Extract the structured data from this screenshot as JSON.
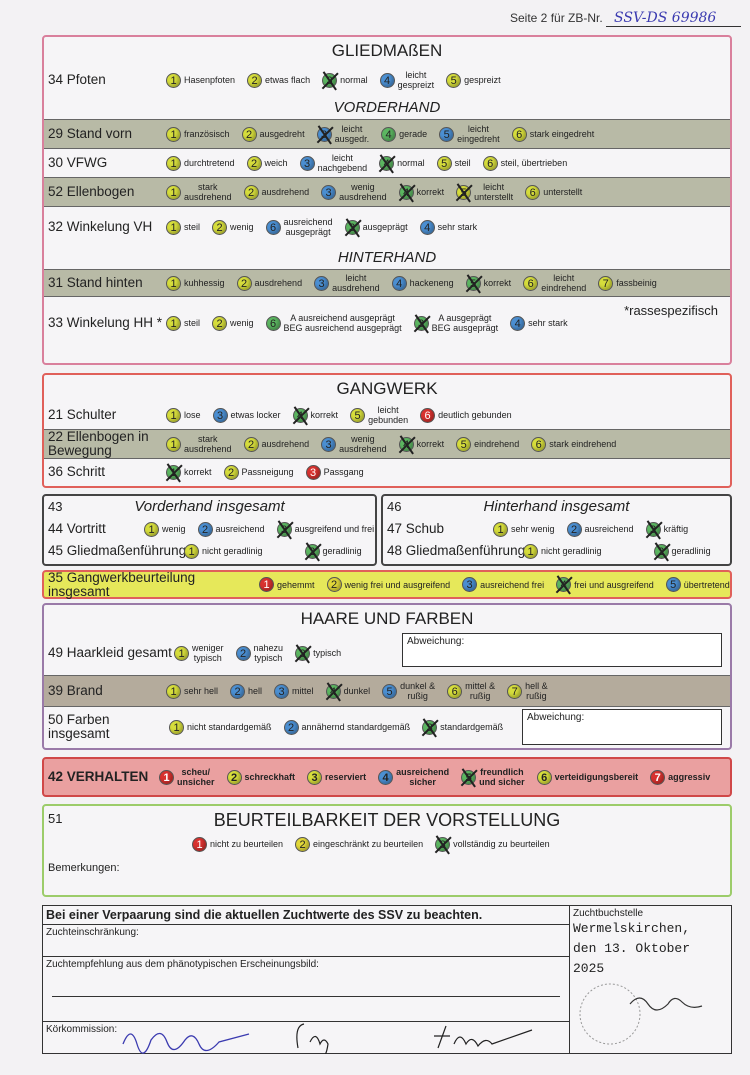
{
  "header": {
    "page_label": "Seite 2 für ZB-Nr.",
    "zb_number": "SSV-DS 69986"
  },
  "colors": {
    "yellow_green": "#d6dd3c",
    "blue": "#4b8fd2",
    "green": "#5cb661",
    "red": "#d8322f",
    "yellow": "#e2d83a"
  },
  "gliedmassen": {
    "title": "GLIEDMAßEN",
    "vorderhand": "VORDERHAND",
    "hinterhand": "HINTERHAND",
    "note": "*rassespezifisch"
  },
  "rows": {
    "r34": {
      "label": "34 Pfoten",
      "options": [
        {
          "n": "1",
          "t": "Hasenpfoten",
          "c": "y"
        },
        {
          "n": "2",
          "t": "etwas flach",
          "c": "y"
        },
        {
          "n": "3",
          "t": "normal",
          "c": "g",
          "checked": true
        },
        {
          "n": "4",
          "t": "leicht\ngespreizt",
          "c": "b"
        },
        {
          "n": "5",
          "t": "gespreizt",
          "c": "y"
        }
      ]
    },
    "r29": {
      "label": "29 Stand vorn",
      "options": [
        {
          "n": "1",
          "t": "französisch",
          "c": "y"
        },
        {
          "n": "2",
          "t": "ausgedreht",
          "c": "y"
        },
        {
          "n": "3",
          "t": "leicht\nausgedr.",
          "c": "b",
          "checked": true
        },
        {
          "n": "4",
          "t": "gerade",
          "c": "g"
        },
        {
          "n": "5",
          "t": "leicht\neingedreht",
          "c": "b"
        },
        {
          "n": "6",
          "t": "stark eingedreht",
          "c": "y"
        }
      ]
    },
    "r30": {
      "label": "30 VFWG",
      "options": [
        {
          "n": "1",
          "t": "durchtretend",
          "c": "y"
        },
        {
          "n": "2",
          "t": "weich",
          "c": "y"
        },
        {
          "n": "3",
          "t": "leicht\nnachgebend",
          "c": "b"
        },
        {
          "n": "4",
          "t": "normal",
          "c": "g",
          "checked": true
        },
        {
          "n": "5",
          "t": "steil",
          "c": "y"
        },
        {
          "n": "6",
          "t": "steil, übertrieben",
          "c": "y"
        }
      ]
    },
    "r52": {
      "label": "52 Ellenbogen",
      "options": [
        {
          "n": "1",
          "t": "stark\nausdrehend",
          "c": "y"
        },
        {
          "n": "2",
          "t": "ausdrehend",
          "c": "y"
        },
        {
          "n": "3",
          "t": "wenig\nausdrehend",
          "c": "b"
        },
        {
          "n": "4",
          "t": "korrekt",
          "c": "g",
          "checked": true
        },
        {
          "n": "5",
          "t": "leicht\nunterstellt",
          "c": "y",
          "checked": true
        },
        {
          "n": "6",
          "t": "unterstellt",
          "c": "y"
        }
      ]
    },
    "r32": {
      "label": "32 Winkelung VH",
      "options": [
        {
          "n": "1",
          "t": "steil",
          "c": "y"
        },
        {
          "n": "2",
          "t": "wenig",
          "c": "y"
        },
        {
          "n": "6",
          "t": "ausreichend\nausgeprägt",
          "c": "b"
        },
        {
          "n": "3",
          "t": "ausgeprägt",
          "c": "g",
          "checked": true
        },
        {
          "n": "4",
          "t": "sehr stark",
          "c": "b"
        }
      ]
    },
    "r31": {
      "label": "31 Stand hinten",
      "options": [
        {
          "n": "1",
          "t": "kuhhessig",
          "c": "y"
        },
        {
          "n": "2",
          "t": "ausdrehend",
          "c": "y"
        },
        {
          "n": "3",
          "t": "leicht\nausdrehend",
          "c": "b"
        },
        {
          "n": "4",
          "t": "hackeneng",
          "c": "b"
        },
        {
          "n": "5",
          "t": "korrekt",
          "c": "g",
          "checked": true
        },
        {
          "n": "6",
          "t": "leicht\neindrehend",
          "c": "y"
        },
        {
          "n": "7",
          "t": "fassbeinig",
          "c": "y"
        }
      ]
    },
    "r33": {
      "label": "33 Winkelung HH *",
      "options": [
        {
          "n": "1",
          "t": "steil",
          "c": "y"
        },
        {
          "n": "2",
          "t": "wenig",
          "c": "y"
        },
        {
          "n": "6",
          "t": "A ausreichend ausgeprägt\nBEG ausreichend ausgeprägt",
          "c": "g"
        },
        {
          "n": "3",
          "t": "A ausgeprägt\nBEG ausgeprägt",
          "c": "g",
          "checked": true
        },
        {
          "n": "4",
          "t": "sehr stark",
          "c": "b"
        }
      ]
    },
    "r21": {
      "label": "21 Schulter",
      "options": [
        {
          "n": "1",
          "t": "lose",
          "c": "y"
        },
        {
          "n": "3",
          "t": "etwas locker",
          "c": "b"
        },
        {
          "n": "4",
          "t": "korrekt",
          "c": "g",
          "checked": true
        },
        {
          "n": "5",
          "t": "leicht\ngebunden",
          "c": "y"
        },
        {
          "n": "6",
          "t": "deutlich gebunden",
          "c": "r"
        }
      ]
    },
    "r22": {
      "label": "22 Ellenbogen in Bewegung",
      "options": [
        {
          "n": "1",
          "t": "stark\nausdrehend",
          "c": "y"
        },
        {
          "n": "2",
          "t": "ausdrehend",
          "c": "y"
        },
        {
          "n": "3",
          "t": "wenig\nausdrehend",
          "c": "b"
        },
        {
          "n": "4",
          "t": "korrekt",
          "c": "g",
          "checked": true
        },
        {
          "n": "5",
          "t": "eindrehend",
          "c": "y"
        },
        {
          "n": "6",
          "t": "stark eindrehend",
          "c": "y"
        }
      ]
    },
    "r36": {
      "label": "36 Schritt",
      "options": [
        {
          "n": "1",
          "t": "korrekt",
          "c": "g",
          "checked": true
        },
        {
          "n": "2",
          "t": "Passneigung",
          "c": "y"
        },
        {
          "n": "3",
          "t": "Passgang",
          "c": "r"
        }
      ]
    },
    "r44": {
      "label": "44 Vortritt",
      "options": [
        {
          "n": "1",
          "t": "wenig",
          "c": "y"
        },
        {
          "n": "2",
          "t": "ausreichend",
          "c": "b"
        },
        {
          "n": "3",
          "t": "ausgreifend und frei",
          "c": "g",
          "checked": true
        }
      ]
    },
    "r45": {
      "label": "45 Gliedmaßenführung",
      "options": [
        {
          "n": "1",
          "t": "nicht geradlinig",
          "c": "y"
        },
        {
          "n": "2",
          "t": "geradlinig",
          "c": "g",
          "checked": true
        }
      ]
    },
    "r47": {
      "label": "47 Schub",
      "options": [
        {
          "n": "1",
          "t": "sehr wenig",
          "c": "y"
        },
        {
          "n": "2",
          "t": "ausreichend",
          "c": "b"
        },
        {
          "n": "3",
          "t": "kräftig",
          "c": "g",
          "checked": true
        }
      ]
    },
    "r48": {
      "label": "48 Gliedmaßenführung",
      "options": [
        {
          "n": "1",
          "t": "nicht geradlinig",
          "c": "y"
        },
        {
          "n": "2",
          "t": "geradlinig",
          "c": "g",
          "checked": true
        }
      ]
    },
    "r35": {
      "label": "35 Gangwerkbeurteilung insgesamt",
      "options": [
        {
          "n": "1",
          "t": "gehemmt",
          "c": "r"
        },
        {
          "n": "2",
          "t": "wenig frei und ausgreifend",
          "c": "o"
        },
        {
          "n": "3",
          "t": "ausreichend frei",
          "c": "b"
        },
        {
          "n": "4",
          "t": "frei und ausgreifend",
          "c": "g",
          "checked": true
        },
        {
          "n": "5",
          "t": "übertretend",
          "c": "b"
        }
      ]
    },
    "r49": {
      "label": "49 Haarkleid gesamt",
      "options": [
        {
          "n": "1",
          "t": "weniger\ntypisch",
          "c": "y"
        },
        {
          "n": "2",
          "t": "nahezu\ntypisch",
          "c": "b"
        },
        {
          "n": "3",
          "t": "typisch",
          "c": "g",
          "checked": true
        }
      ]
    },
    "r39": {
      "label": "39 Brand",
      "options": [
        {
          "n": "1",
          "t": "sehr hell",
          "c": "y"
        },
        {
          "n": "2",
          "t": "hell",
          "c": "b"
        },
        {
          "n": "3",
          "t": "mittel",
          "c": "b"
        },
        {
          "n": "4",
          "t": "dunkel",
          "c": "g",
          "checked": true
        },
        {
          "n": "5",
          "t": "dunkel &\nrußig",
          "c": "b"
        },
        {
          "n": "6",
          "t": "mittel &\nrußig",
          "c": "y"
        },
        {
          "n": "7",
          "t": "hell &\nrußig",
          "c": "y"
        }
      ]
    },
    "r50": {
      "label": "50 Farben insgesamt",
      "options": [
        {
          "n": "1",
          "t": "nicht standardgemäß",
          "c": "y"
        },
        {
          "n": "2",
          "t": "annähernd standardgemäß",
          "c": "b"
        },
        {
          "n": "3",
          "t": "standardgemäß",
          "c": "g",
          "checked": true
        }
      ]
    },
    "r42": {
      "label": "42 VERHALTEN",
      "options": [
        {
          "n": "1",
          "t": "scheu/\nunsicher",
          "c": "r"
        },
        {
          "n": "2",
          "t": "schreckhaft",
          "c": "y"
        },
        {
          "n": "3",
          "t": "reserviert",
          "c": "y"
        },
        {
          "n": "4",
          "t": "ausreichend\nsicher",
          "c": "b"
        },
        {
          "n": "5",
          "t": "freundlich\nund sicher",
          "c": "g",
          "checked": true
        },
        {
          "n": "6",
          "t": "verteidigungsbereit",
          "c": "y"
        },
        {
          "n": "7",
          "t": "aggressiv",
          "c": "r"
        }
      ]
    },
    "r51": {
      "label": "",
      "options": [
        {
          "n": "1",
          "t": "nicht zu beurteilen",
          "c": "r"
        },
        {
          "n": "2",
          "t": "eingeschränkt zu beurteilen",
          "c": "o"
        },
        {
          "n": "3",
          "t": "vollständig zu beurteilen",
          "c": "g",
          "checked": true
        }
      ]
    }
  },
  "gangwerk": {
    "title": "GANGWERK"
  },
  "vh": {
    "num": "43",
    "title": "Vorderhand insgesamt"
  },
  "hh": {
    "num": "46",
    "title": "Hinterhand insgesamt"
  },
  "haare": {
    "title": "HAARE UND FARBEN",
    "abweichung": "Abweichung:"
  },
  "beurteilbarkeit": {
    "num": "51",
    "title": "BEURTEILBARKEIT DER VORSTELLUNG",
    "remarks": "Bemerkungen:"
  },
  "footer": {
    "notice": "Bei einer Verpaarung sind die aktuellen Zuchtwerte des SSV zu beachten.",
    "restriction": "Zuchteinschränkung:",
    "recommendation": "Zuchtempfehlung aus dem phänotypischen Erscheinungsbild:",
    "commission": "Körkommission:",
    "office_label": "Zuchtbuchstelle",
    "place": "Wermelskirchen,",
    "date": "den 13. Oktober 2025"
  }
}
